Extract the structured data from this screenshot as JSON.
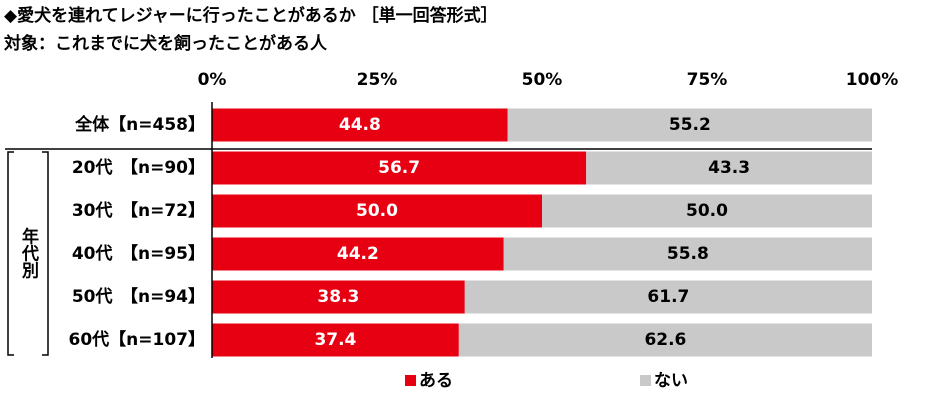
{
  "chart_data": {
    "type": "stacked_barh",
    "title": "◆愛犬を連れてレジャーに行ったことがあるか ［単一回答形式］",
    "subtitle": "対象：これまでに犬を飼ったことがある人",
    "group_label": "年代別",
    "categories": [
      "全体【n=458】",
      "20代　【n=90】",
      "30代　【n=72】",
      "40代　【n=95】",
      "50代　【n=94】",
      "60代【n=107】"
    ],
    "series": [
      {
        "name": "ある",
        "color": "#e60012",
        "values": [
          44.8,
          56.7,
          50.0,
          44.2,
          38.3,
          37.4
        ],
        "value_labels": [
          "44.8",
          "56.7",
          "50.0",
          "44.2",
          "38.3",
          "37.4"
        ]
      },
      {
        "name": "ない",
        "color": "#c9c9c9",
        "values": [
          55.2,
          43.3,
          50.0,
          55.8,
          61.7,
          62.6
        ],
        "value_labels": [
          "55.2",
          "43.3",
          "50.0",
          "55.8",
          "61.7",
          "62.6"
        ]
      }
    ],
    "xlim": [
      0,
      100
    ],
    "xticks": [
      {
        "value": 0,
        "label": "0%"
      },
      {
        "value": 25,
        "label": "25%"
      },
      {
        "value": 50,
        "label": "50%"
      },
      {
        "value": 75,
        "label": "75%"
      },
      {
        "value": 100,
        "label": "100%"
      }
    ],
    "legend": "bottom"
  }
}
